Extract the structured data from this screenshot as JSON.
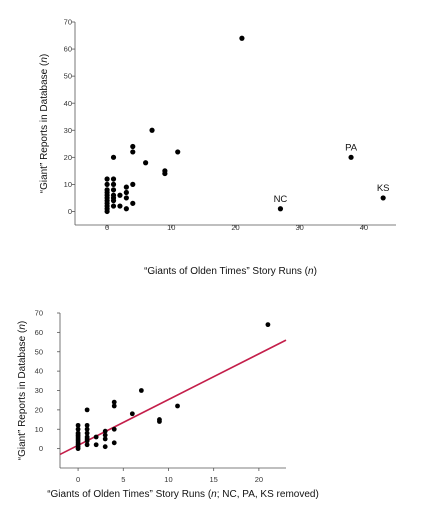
{
  "chart_data": [
    {
      "type": "scatter",
      "title": "",
      "xlabel_parts": [
        "“Giants of Olden Times” Story Runs (",
        "n",
        ")"
      ],
      "ylabel_parts": [
        "“Giant” Reports in Database (",
        "n",
        ")"
      ],
      "xlim": [
        -5,
        45
      ],
      "ylim": [
        -5,
        70
      ],
      "xticks": [
        0,
        10,
        20,
        30,
        40
      ],
      "yticks": [
        0,
        10,
        20,
        30,
        40,
        50,
        60,
        70
      ],
      "grid": false,
      "points": [
        {
          "x": 0,
          "y": 0
        },
        {
          "x": 0,
          "y": 1
        },
        {
          "x": 0,
          "y": 2
        },
        {
          "x": 0,
          "y": 3
        },
        {
          "x": 0,
          "y": 4
        },
        {
          "x": 0,
          "y": 5
        },
        {
          "x": 0,
          "y": 6
        },
        {
          "x": 0,
          "y": 7
        },
        {
          "x": 0,
          "y": 8
        },
        {
          "x": 0,
          "y": 10
        },
        {
          "x": 0,
          "y": 12
        },
        {
          "x": 1,
          "y": 2
        },
        {
          "x": 1,
          "y": 4
        },
        {
          "x": 1,
          "y": 5
        },
        {
          "x": 1,
          "y": 6
        },
        {
          "x": 1,
          "y": 8
        },
        {
          "x": 1,
          "y": 10
        },
        {
          "x": 1,
          "y": 12
        },
        {
          "x": 1,
          "y": 20
        },
        {
          "x": 2,
          "y": 2
        },
        {
          "x": 2,
          "y": 6
        },
        {
          "x": 3,
          "y": 1
        },
        {
          "x": 3,
          "y": 5
        },
        {
          "x": 3,
          "y": 7
        },
        {
          "x": 3,
          "y": 9
        },
        {
          "x": 4,
          "y": 3
        },
        {
          "x": 4,
          "y": 10
        },
        {
          "x": 4,
          "y": 22
        },
        {
          "x": 4,
          "y": 24
        },
        {
          "x": 6,
          "y": 18
        },
        {
          "x": 7,
          "y": 30
        },
        {
          "x": 9,
          "y": 14
        },
        {
          "x": 9,
          "y": 15
        },
        {
          "x": 11,
          "y": 22
        },
        {
          "x": 21,
          "y": 64
        },
        {
          "x": 27,
          "y": 1,
          "label": "NC"
        },
        {
          "x": 38,
          "y": 20,
          "label": "PA"
        },
        {
          "x": 43,
          "y": 5,
          "label": "KS"
        }
      ]
    },
    {
      "type": "scatter",
      "title": "",
      "xlabel_parts": [
        "“Giants of Olden Times” Story Runs (",
        "n",
        "; NC, PA, KS removed)"
      ],
      "ylabel_parts": [
        "“Giant” Reports in Database (",
        "n",
        ")"
      ],
      "xlim": [
        -2,
        23
      ],
      "ylim": [
        -10,
        70
      ],
      "xticks": [
        0,
        5,
        10,
        15,
        20
      ],
      "yticks": [
        0,
        10,
        20,
        30,
        40,
        50,
        60,
        70
      ],
      "grid": false,
      "points": [
        {
          "x": 0,
          "y": 0
        },
        {
          "x": 0,
          "y": 1
        },
        {
          "x": 0,
          "y": 2
        },
        {
          "x": 0,
          "y": 3
        },
        {
          "x": 0,
          "y": 4
        },
        {
          "x": 0,
          "y": 5
        },
        {
          "x": 0,
          "y": 6
        },
        {
          "x": 0,
          "y": 7
        },
        {
          "x": 0,
          "y": 8
        },
        {
          "x": 0,
          "y": 10
        },
        {
          "x": 0,
          "y": 12
        },
        {
          "x": 1,
          "y": 2
        },
        {
          "x": 1,
          "y": 4
        },
        {
          "x": 1,
          "y": 5
        },
        {
          "x": 1,
          "y": 6
        },
        {
          "x": 1,
          "y": 8
        },
        {
          "x": 1,
          "y": 10
        },
        {
          "x": 1,
          "y": 12
        },
        {
          "x": 1,
          "y": 20
        },
        {
          "x": 2,
          "y": 2
        },
        {
          "x": 2,
          "y": 6
        },
        {
          "x": 3,
          "y": 1
        },
        {
          "x": 3,
          "y": 5
        },
        {
          "x": 3,
          "y": 7
        },
        {
          "x": 3,
          "y": 9
        },
        {
          "x": 4,
          "y": 3
        },
        {
          "x": 4,
          "y": 10
        },
        {
          "x": 4,
          "y": 22
        },
        {
          "x": 4,
          "y": 24
        },
        {
          "x": 6,
          "y": 18
        },
        {
          "x": 7,
          "y": 30
        },
        {
          "x": 9,
          "y": 14
        },
        {
          "x": 9,
          "y": 15
        },
        {
          "x": 11,
          "y": 22
        },
        {
          "x": 21,
          "y": 64
        }
      ],
      "fit_line": {
        "x": [
          -2,
          23
        ],
        "y": [
          -3,
          56
        ],
        "color": "#c41e4a"
      }
    }
  ]
}
